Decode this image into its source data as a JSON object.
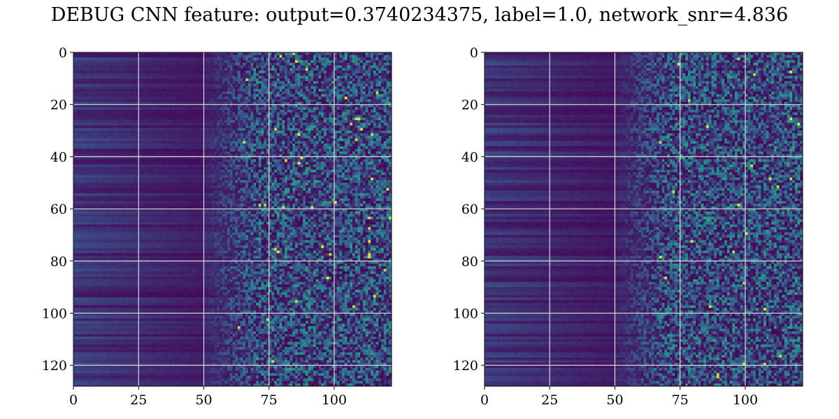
{
  "figure": {
    "title": "DEBUG CNN feature: output=0.3740234375, label=1.0, network_snr=4.836"
  },
  "chart_data": [
    {
      "type": "heatmap",
      "panel": "left",
      "colormap": "viridis",
      "grid": true,
      "n_cols": 122,
      "n_rows": 128,
      "xlim": [
        0,
        122
      ],
      "ylim": [
        128,
        0
      ],
      "x_ticks": [
        0,
        25,
        50,
        75,
        100
      ],
      "x_tick_labels": [
        "0",
        "25",
        "50",
        "75",
        "100"
      ],
      "y_ticks": [
        0,
        20,
        40,
        60,
        80,
        100,
        120
      ],
      "y_tick_labels": [
        "0",
        "20",
        "40",
        "60",
        "80",
        "100",
        "120"
      ],
      "seed": 7,
      "description_values": "low uniform values (dark purple) for x<50 with horizontal banding, noisy mid/high values (teal) for x>65, sparse bright yellow pixels"
    },
    {
      "type": "heatmap",
      "panel": "right",
      "colormap": "viridis",
      "grid": true,
      "n_cols": 122,
      "n_rows": 128,
      "xlim": [
        0,
        122
      ],
      "ylim": [
        128,
        0
      ],
      "x_ticks": [
        0,
        25,
        50,
        75,
        100
      ],
      "x_tick_labels": [
        "0",
        "25",
        "50",
        "75",
        "100"
      ],
      "y_ticks": [
        0,
        20,
        40,
        60,
        80,
        100,
        120
      ],
      "y_tick_labels": [
        "0",
        "20",
        "40",
        "60",
        "80",
        "100",
        "120"
      ],
      "seed": 19,
      "description_values": "low uniform values (dark purple) for x<50 with horizontal banding, noisy mid/high values (teal) for x>65, sparse bright yellow pixels"
    }
  ]
}
